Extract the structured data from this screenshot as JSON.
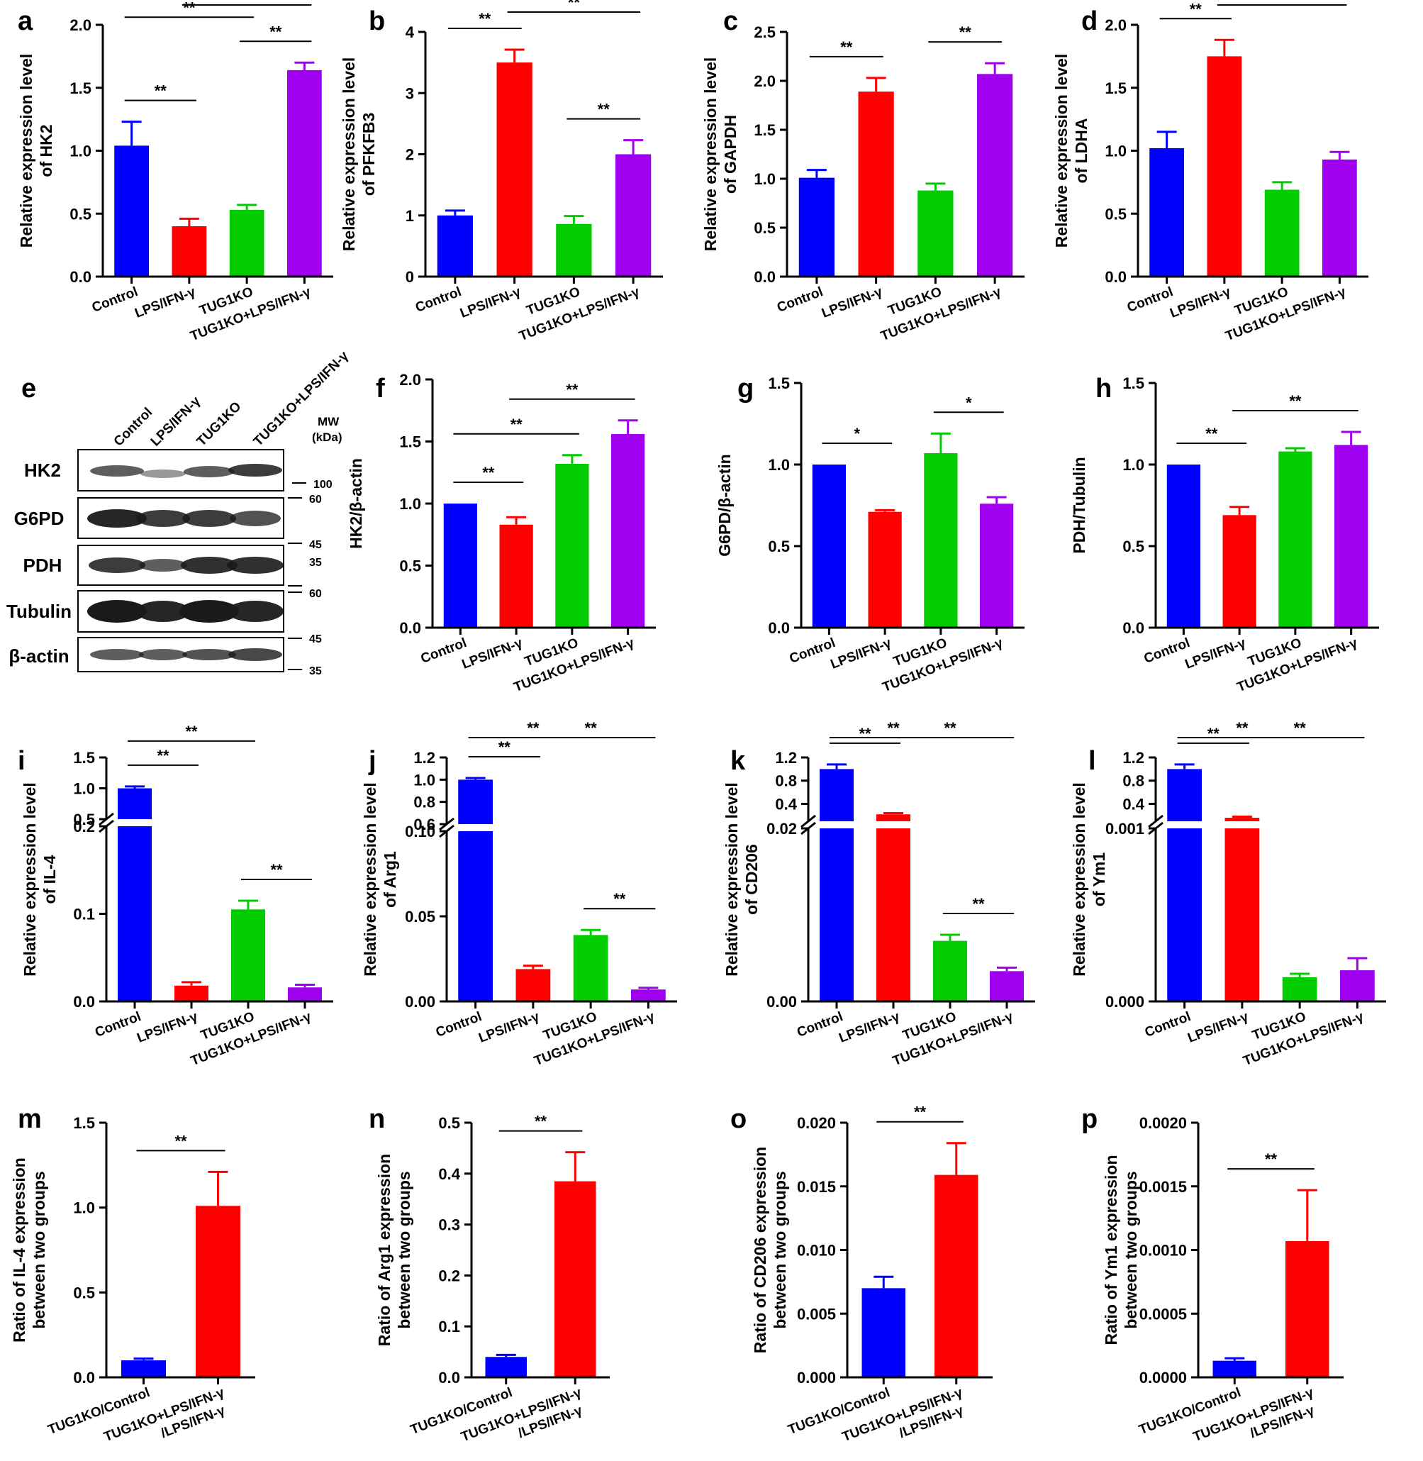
{
  "colors": {
    "blue": "#0000ff",
    "red": "#ff0000",
    "green": "#00cc00",
    "purple": "#a000f0",
    "black": "#000000"
  },
  "chart_data": [
    {
      "letter": "a",
      "type": "bar",
      "ylabel": [
        "Relative expression level",
        "of HK2"
      ],
      "categories": [
        "Control",
        "LPS/IFN-γ",
        "TUG1KO",
        "TUG1KO+LPS/IFN-γ"
      ],
      "values": [
        1.04,
        0.4,
        0.53,
        1.64
      ],
      "errors": [
        0.19,
        0.06,
        0.04,
        0.06
      ],
      "ylim": [
        0,
        2.0
      ],
      "ticks": [
        "0.0",
        "0.5",
        "1.0",
        "1.5",
        "2.0"
      ],
      "significance": [
        {
          "from": 0,
          "to": 1,
          "label": "**"
        },
        {
          "from": 0,
          "to": 2,
          "label": "**"
        },
        {
          "from": 2,
          "to": 3,
          "label": "**"
        },
        {
          "from": 1,
          "to": 3,
          "label": "**"
        }
      ]
    },
    {
      "letter": "b",
      "type": "bar",
      "ylabel": [
        "Relative expression level",
        "of PFKFB3"
      ],
      "categories": [
        "Control",
        "LPS/IFN-γ",
        "TUG1KO",
        "TUG1KO+LPS/IFN-γ"
      ],
      "values": [
        1.0,
        3.5,
        0.86,
        2.0
      ],
      "errors": [
        0.08,
        0.21,
        0.13,
        0.23
      ],
      "ylim": [
        0,
        4
      ],
      "ticks": [
        "0",
        "1",
        "2",
        "3",
        "4"
      ],
      "significance": [
        {
          "from": 0,
          "to": 1,
          "label": "**"
        },
        {
          "from": 2,
          "to": 3,
          "label": "**"
        },
        {
          "from": 1,
          "to": 3,
          "label": "**"
        }
      ]
    },
    {
      "letter": "c",
      "type": "bar",
      "ylabel": [
        "Relative expression level",
        "of GAPDH"
      ],
      "categories": [
        "Control",
        "LPS/IFN-γ",
        "TUG1KO",
        "TUG1KO+LPS/IFN-γ"
      ],
      "values": [
        1.01,
        1.89,
        0.88,
        2.07
      ],
      "errors": [
        0.08,
        0.14,
        0.07,
        0.11
      ],
      "ylim": [
        0,
        2.5
      ],
      "ticks": [
        "0.0",
        "0.5",
        "1.0",
        "1.5",
        "2.0",
        "2.5"
      ],
      "significance": [
        {
          "from": 0,
          "to": 1,
          "label": "**"
        },
        {
          "from": 2,
          "to": 3,
          "label": "**"
        }
      ]
    },
    {
      "letter": "d",
      "type": "bar",
      "ylabel": [
        "Relative expression level",
        "of LDHA"
      ],
      "categories": [
        "Control",
        "LPS/IFN-γ",
        "TUG1KO",
        "TUG1KO+LPS/IFN-γ"
      ],
      "values": [
        1.02,
        1.75,
        0.69,
        0.93
      ],
      "errors": [
        0.13,
        0.13,
        0.06,
        0.06
      ],
      "ylim": [
        0,
        2.0
      ],
      "ticks": [
        "0.0",
        "0.5",
        "1.0",
        "1.5",
        "2.0"
      ],
      "significance": [
        {
          "from": 0,
          "to": 1,
          "label": "**"
        },
        {
          "from": 1,
          "to": 3,
          "label": "**"
        }
      ]
    },
    {
      "letter": "f",
      "type": "bar",
      "ylabel": [
        "HK2/β-actin"
      ],
      "categories": [
        "Control",
        "LPS/IFN-γ",
        "TUG1KO",
        "TUG1KO+LPS/IFN-γ"
      ],
      "values": [
        1.0,
        0.83,
        1.32,
        1.56
      ],
      "errors": [
        0,
        0.06,
        0.07,
        0.11
      ],
      "ylim": [
        0,
        2.0
      ],
      "ticks": [
        "0.0",
        "0.5",
        "1.0",
        "1.5",
        "2.0"
      ],
      "significance": [
        {
          "from": 0,
          "to": 1,
          "label": "**"
        },
        {
          "from": 0,
          "to": 2,
          "label": "**"
        },
        {
          "from": 1,
          "to": 3,
          "label": "**"
        }
      ]
    },
    {
      "letter": "g",
      "type": "bar",
      "ylabel": [
        "G6PD/β-actin"
      ],
      "categories": [
        "Control",
        "LPS/IFN-γ",
        "TUG1KO",
        "TUG1KO+LPS/IFN-γ"
      ],
      "values": [
        1.0,
        0.71,
        1.07,
        0.76
      ],
      "errors": [
        0,
        0.01,
        0.12,
        0.04
      ],
      "ylim": [
        0,
        1.5
      ],
      "ticks": [
        "0.0",
        "0.5",
        "1.0",
        "1.5"
      ],
      "significance": [
        {
          "from": 0,
          "to": 1,
          "label": "*"
        },
        {
          "from": 2,
          "to": 3,
          "label": "*"
        }
      ]
    },
    {
      "letter": "h",
      "type": "bar",
      "ylabel": [
        "PDH/Tubulin"
      ],
      "categories": [
        "Control",
        "LPS/IFN-γ",
        "TUG1KO",
        "TUG1KO+LPS/IFN-γ"
      ],
      "values": [
        1.0,
        0.69,
        1.08,
        1.12
      ],
      "errors": [
        0,
        0.05,
        0.02,
        0.08
      ],
      "ylim": [
        0,
        1.5
      ],
      "ticks": [
        "0.0",
        "0.5",
        "1.0",
        "1.5"
      ],
      "significance": [
        {
          "from": 0,
          "to": 1,
          "label": "**"
        },
        {
          "from": 1,
          "to": 3,
          "label": "**"
        }
      ]
    },
    {
      "letter": "i",
      "type": "bar",
      "broken_axis": true,
      "ylabel": [
        "Relative expression level",
        "of IL-4"
      ],
      "categories": [
        "Control",
        "LPS/IFN-γ",
        "TUG1KO",
        "TUG1KO+LPS/IFN-γ"
      ],
      "values": [
        1.0,
        0.018,
        0.105,
        0.016
      ],
      "errors": [
        0.03,
        0.004,
        0.01,
        0.003
      ],
      "lower_range": [
        0,
        0.2
      ],
      "upper_range": [
        0.5,
        1.5
      ],
      "lower_ticks": [
        "0.0",
        "0.1",
        "0.2"
      ],
      "upper_ticks": [
        "0.5",
        "1.0",
        "1.5"
      ],
      "significance": [
        {
          "from": 0,
          "to": 1,
          "label": "**"
        },
        {
          "from": 0,
          "to": 2,
          "label": "**"
        },
        {
          "from": 2,
          "to": 3,
          "label": "**"
        }
      ]
    },
    {
      "letter": "j",
      "type": "bar",
      "broken_axis": true,
      "ylabel": [
        "Relative expression level",
        "of Arg1"
      ],
      "categories": [
        "Control",
        "LPS/IFN-γ",
        "TUG1KO",
        "TUG1KO+LPS/IFN-γ"
      ],
      "values": [
        1.0,
        0.019,
        0.039,
        0.007
      ],
      "errors": [
        0.015,
        0.002,
        0.003,
        0.001
      ],
      "lower_range": [
        0,
        0.1
      ],
      "upper_range": [
        0.6,
        1.2
      ],
      "lower_ticks": [
        "0.00",
        "0.05",
        "0.10"
      ],
      "upper_ticks": [
        "0.6",
        "0.8",
        "1.0",
        "1.2"
      ],
      "significance": [
        {
          "from": 0,
          "to": 1,
          "label": "**"
        },
        {
          "from": 0,
          "to": 2,
          "label": "**"
        },
        {
          "from": 2,
          "to": 3,
          "label": "**"
        },
        {
          "from": 1,
          "to": 3,
          "label": "**"
        }
      ]
    },
    {
      "letter": "k",
      "type": "bar",
      "broken_axis": true,
      "ylabel": [
        "Relative expression level",
        "of CD206"
      ],
      "categories": [
        "Control",
        "LPS/IFN-γ",
        "TUG1KO",
        "TUG1KO+LPS/IFN-γ"
      ],
      "values": [
        1.0,
        0.22,
        0.007,
        0.0035
      ],
      "errors": [
        0.08,
        0.02,
        0.0007,
        0.0004
      ],
      "lower_range": [
        0,
        0.02
      ],
      "upper_range": [
        0.1,
        1.2
      ],
      "lower_ticks": [
        "0.00",
        "0.02"
      ],
      "upper_ticks": [
        "0.4",
        "0.8",
        "1.2"
      ],
      "significance": [
        {
          "from": 0,
          "to": 1,
          "label": "**"
        },
        {
          "from": 0,
          "to": 2,
          "label": "**"
        },
        {
          "from": 1,
          "to": 3,
          "label": "**"
        },
        {
          "from": 2,
          "to": 3,
          "label": "**"
        }
      ]
    },
    {
      "letter": "l",
      "type": "bar",
      "broken_axis": true,
      "ylabel": [
        "Relative expression level",
        "of Ym1"
      ],
      "categories": [
        "Control",
        "LPS/IFN-γ",
        "TUG1KO",
        "TUG1KO+LPS/IFN-γ"
      ],
      "values": [
        1.0,
        0.16,
        0.00014,
        0.00018
      ],
      "errors": [
        0.08,
        0.02,
        2e-05,
        7e-05
      ],
      "lower_range": [
        0,
        0.001
      ],
      "upper_range": [
        0.1,
        1.2
      ],
      "lower_ticks": [
        "0.000",
        "0.001"
      ],
      "upper_ticks": [
        "0.4",
        "0.8",
        "1.2"
      ],
      "significance": [
        {
          "from": 0,
          "to": 1,
          "label": "**"
        },
        {
          "from": 0,
          "to": 2,
          "label": "**"
        },
        {
          "from": 1,
          "to": 3,
          "label": "**"
        }
      ]
    },
    {
      "letter": "m",
      "type": "bar",
      "ylabel": [
        "Ratio of IL-4 expression",
        "between two groups"
      ],
      "categories": [
        "TUG1KO/Control",
        "TUG1KO+LPS/IFN-γ|/LPS/IFN-γ"
      ],
      "values": [
        0.1,
        1.01
      ],
      "errors": [
        0.01,
        0.2
      ],
      "ylim": [
        0,
        1.5
      ],
      "ticks": [
        "0.0",
        "0.5",
        "1.0",
        "1.5"
      ],
      "significance": [
        {
          "from": 0,
          "to": 1,
          "label": "**"
        }
      ]
    },
    {
      "letter": "n",
      "type": "bar",
      "ylabel": [
        "Ratio of Arg1 expression",
        "between two groups"
      ],
      "categories": [
        "TUG1KO/Control",
        "TUG1KO+LPS/IFN-γ|/LPS/IFN-γ"
      ],
      "values": [
        0.04,
        0.385
      ],
      "errors": [
        0.004,
        0.057
      ],
      "ylim": [
        0,
        0.5
      ],
      "ticks": [
        "0.0",
        "0.1",
        "0.2",
        "0.3",
        "0.4",
        "0.5"
      ],
      "significance": [
        {
          "from": 0,
          "to": 1,
          "label": "**"
        }
      ]
    },
    {
      "letter": "o",
      "type": "bar",
      "ylabel": [
        "Ratio of CD206 expression",
        "between two groups"
      ],
      "categories": [
        "TUG1KO/Control",
        "TUG1KO+LPS/IFN-γ|/LPS/IFN-γ"
      ],
      "values": [
        0.007,
        0.0159
      ],
      "errors": [
        0.0009,
        0.0025
      ],
      "ylim": [
        0,
        0.02
      ],
      "ticks": [
        "0.000",
        "0.005",
        "0.010",
        "0.015",
        "0.020"
      ],
      "significance": [
        {
          "from": 0,
          "to": 1,
          "label": "**"
        }
      ]
    },
    {
      "letter": "p",
      "type": "bar",
      "ylabel": [
        "Ratio of Ym1 expression",
        "between two groups"
      ],
      "categories": [
        "TUG1KO/Control",
        "TUG1KO+LPS/IFN-γ|/LPS/IFN-γ"
      ],
      "values": [
        0.00013,
        0.00107
      ],
      "errors": [
        2e-05,
        0.0004
      ],
      "ylim": [
        0,
        0.002
      ],
      "ticks": [
        "0.0000",
        "0.0005",
        "0.0010",
        "0.0015",
        "0.0020"
      ],
      "significance": [
        {
          "from": 0,
          "to": 1,
          "label": "**"
        }
      ]
    }
  ],
  "western_blot": {
    "letter": "e",
    "lane_labels": [
      "Control",
      "LPS/IFN-γ",
      "TUG1KO",
      "TUG1KO+LPS/IFN-γ"
    ],
    "mw_header": [
      "MW",
      "(kDa)"
    ],
    "bands": [
      "HK2",
      "G6PD",
      "PDH",
      "Tubulin",
      "β-actin"
    ],
    "markers": [
      "100",
      "60",
      "45",
      "35",
      "60",
      "45",
      "35"
    ]
  }
}
